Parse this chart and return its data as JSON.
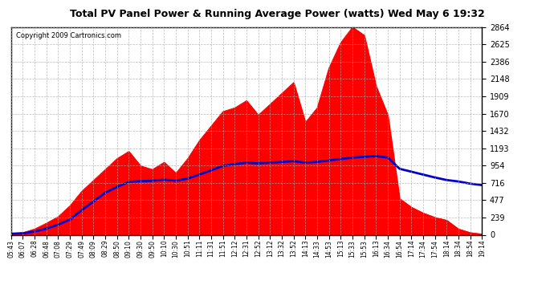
{
  "title": "Total PV Panel Power & Running Average Power (watts) Wed May 6 19:32",
  "copyright": "Copyright 2009 Cartronics.com",
  "bg_color": "#ffffff",
  "plot_bg_color": "#ffffff",
  "grid_color": "#aaaaaa",
  "fill_color": "#ff0000",
  "line_color": "#0000cc",
  "y_ticks": [
    0.0,
    238.6,
    477.3,
    715.9,
    954.5,
    1193.2,
    1431.8,
    1670.4,
    1909.1,
    2147.7,
    2386.3,
    2624.9,
    2863.6
  ],
  "x_labels": [
    "05:43",
    "06:07",
    "06:28",
    "06:48",
    "07:08",
    "07:29",
    "07:49",
    "08:09",
    "08:29",
    "08:50",
    "09:10",
    "09:30",
    "09:50",
    "10:10",
    "10:30",
    "10:51",
    "11:11",
    "11:31",
    "11:51",
    "12:12",
    "12:31",
    "12:52",
    "13:12",
    "13:32",
    "13:52",
    "14:13",
    "14:33",
    "14:53",
    "15:13",
    "15:33",
    "15:53",
    "16:13",
    "16:34",
    "16:54",
    "17:14",
    "17:34",
    "17:54",
    "18:14",
    "18:34",
    "18:54",
    "19:14"
  ],
  "num_points": 41,
  "ymax": 2863.6,
  "ymin": 0.0,
  "pv_power": [
    20,
    30,
    80,
    160,
    250,
    400,
    600,
    750,
    900,
    1050,
    1150,
    950,
    900,
    1000,
    850,
    1050,
    1300,
    1500,
    1700,
    1750,
    1850,
    1650,
    1800,
    1950,
    2100,
    1550,
    1750,
    2300,
    2650,
    2863,
    2750,
    2050,
    1650,
    500,
    380,
    300,
    240,
    200,
    80,
    30,
    10
  ],
  "running_avg": [
    15,
    20,
    45,
    85,
    140,
    210,
    340,
    460,
    580,
    660,
    730,
    740,
    745,
    760,
    745,
    775,
    830,
    890,
    950,
    975,
    995,
    985,
    995,
    1005,
    1015,
    995,
    1005,
    1025,
    1045,
    1065,
    1075,
    1085,
    1065,
    910,
    870,
    830,
    790,
    755,
    735,
    705,
    685
  ]
}
